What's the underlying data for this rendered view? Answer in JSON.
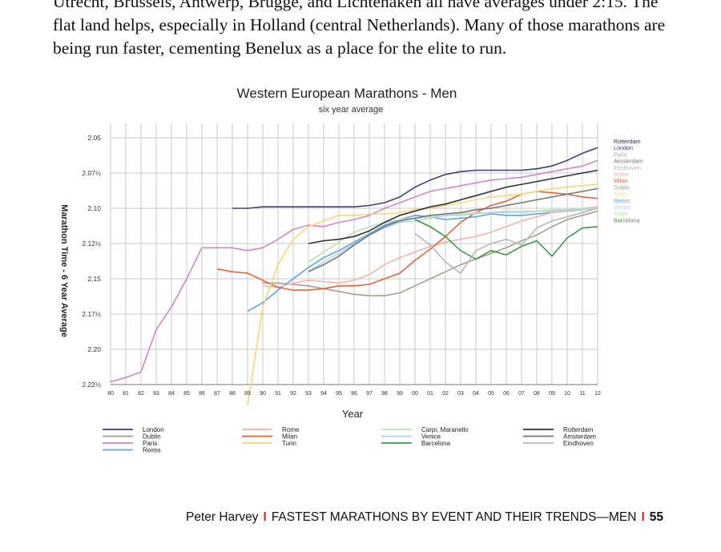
{
  "page": {
    "paragraph": "Utrecht, Brussels, Antwerp, Brugge, and Lichtenaken all have averages under 2:15. The flat land helps, especially in Holland (central Netherlands). Many of those marathons are being run faster, cementing Benelux as a place for the elite to run.",
    "footer": {
      "author": "Peter Harvey",
      "separator": "I",
      "title": "FASTEST MARATHONS BY EVENT AND THEIR TRENDS—MEN",
      "page_number": "55"
    }
  },
  "chart_data": {
    "type": "line",
    "title": "Western European Marathons - Men",
    "subtitle": "six year average",
    "xlabel": "Year",
    "ylabel": "Marathon Time - 6 Year Average",
    "y_inverted": true,
    "ylim_minutes": [
      126,
      141
    ],
    "grid": true,
    "x": [
      "80",
      "81",
      "82",
      "83",
      "84",
      "85",
      "86",
      "87",
      "88",
      "89",
      "90",
      "91",
      "92",
      "93",
      "94",
      "95",
      "96",
      "97",
      "98",
      "99",
      "00",
      "01",
      "02",
      "03",
      "04",
      "05",
      "06",
      "07",
      "08",
      "09",
      "10",
      "11",
      "12"
    ],
    "y_ticks": [
      {
        "label": "2.05",
        "minutes": 125
      },
      {
        "label": "2.07½",
        "minutes": 127.5
      },
      {
        "label": "2.10",
        "minutes": 130
      },
      {
        "label": "2.12½",
        "minutes": 132.5
      },
      {
        "label": "2.15",
        "minutes": 135
      },
      {
        "label": "2.17½",
        "minutes": 137.5
      },
      {
        "label": "2.20",
        "minutes": 140
      },
      {
        "label": "2.22½",
        "minutes": 142.5
      }
    ],
    "series": [
      {
        "name": "London",
        "color": "#3f3f7d",
        "values": [
          null,
          null,
          null,
          null,
          null,
          null,
          null,
          null,
          130.0,
          130.0,
          129.9,
          129.9,
          129.9,
          129.9,
          129.9,
          129.9,
          129.9,
          129.8,
          129.6,
          129.2,
          128.5,
          128.0,
          127.6,
          127.4,
          127.3,
          127.3,
          127.3,
          127.3,
          127.2,
          127.0,
          126.6,
          126.1,
          125.7
        ]
      },
      {
        "name": "Dublin",
        "color": "#a4a08c",
        "values": [
          null,
          null,
          null,
          null,
          null,
          null,
          null,
          null,
          null,
          null,
          135.3,
          135.3,
          135.4,
          135.5,
          135.7,
          135.9,
          136.1,
          136.2,
          136.2,
          136.0,
          135.5,
          135.0,
          134.5,
          134.0,
          133.6,
          133.2,
          132.8,
          132.3,
          131.9,
          131.3,
          130.8,
          130.5,
          130.2
        ]
      },
      {
        "name": "Paris",
        "color": "#cf86c3",
        "values": [
          142.3,
          142.0,
          141.6,
          138.6,
          137.0,
          135.0,
          132.8,
          132.8,
          132.8,
          133.0,
          132.8,
          132.2,
          131.5,
          131.2,
          131.3,
          131.0,
          130.8,
          130.5,
          130.0,
          129.6,
          129.2,
          128.8,
          128.6,
          128.4,
          128.2,
          128.0,
          127.9,
          127.8,
          127.6,
          127.4,
          127.2,
          127.0,
          126.6
        ]
      },
      {
        "name": "Reims",
        "color": "#5aa7dc",
        "values": [
          null,
          null,
          null,
          null,
          null,
          null,
          null,
          null,
          null,
          137.3,
          136.7,
          135.8,
          135.0,
          134.2,
          133.5,
          133.0,
          132.4,
          131.8,
          131.2,
          130.8,
          130.5,
          130.6,
          130.8,
          130.7,
          130.6,
          130.4,
          130.5,
          130.5,
          130.4,
          130.3,
          130.2,
          130.1,
          130.0
        ]
      },
      {
        "name": "Rome",
        "color": "#f3b2a6",
        "values": [
          null,
          null,
          null,
          null,
          null,
          null,
          null,
          null,
          null,
          null,
          135.5,
          135.6,
          135.3,
          135.1,
          135.2,
          135.3,
          135.1,
          134.7,
          134.0,
          133.5,
          133.1,
          132.7,
          132.4,
          132.2,
          132.0,
          131.7,
          131.3,
          130.9,
          130.6,
          130.3,
          130.2,
          130.0,
          129.9
        ]
      },
      {
        "name": "Milan",
        "color": "#e6633a",
        "values": [
          null,
          null,
          null,
          null,
          null,
          null,
          null,
          134.3,
          134.5,
          134.6,
          135.1,
          135.6,
          135.8,
          135.8,
          135.7,
          135.5,
          135.5,
          135.4,
          135.0,
          134.6,
          133.7,
          132.9,
          132.0,
          131.0,
          130.3,
          129.8,
          129.5,
          129.0,
          128.8,
          128.9,
          129.0,
          129.2,
          129.3
        ]
      },
      {
        "name": "Turin",
        "color": "#f7d673",
        "values": [
          null,
          null,
          null,
          null,
          null,
          null,
          null,
          null,
          null,
          144.0,
          137.0,
          134.0,
          132.2,
          131.3,
          130.9,
          130.5,
          130.5,
          130.4,
          130.4,
          130.3,
          130.1,
          130.0,
          129.8,
          129.6,
          129.4,
          129.2,
          129.1,
          129.0,
          128.8,
          128.6,
          128.5,
          128.4,
          128.3
        ]
      },
      {
        "name": "Carpi, Maranello",
        "color": "#bde3a6",
        "values": [
          null,
          null,
          null,
          null,
          null,
          null,
          null,
          null,
          null,
          null,
          null,
          null,
          null,
          133.8,
          133.1,
          132.4,
          131.7,
          131.3,
          131.0,
          130.8,
          130.7,
          130.6,
          130.5,
          130.4,
          130.3,
          130.3,
          130.2,
          130.2,
          130.2,
          130.1,
          130.1,
          130.0,
          130.0
        ]
      },
      {
        "name": "Venice",
        "color": "#b0d4e7",
        "values": [
          null,
          null,
          null,
          null,
          null,
          null,
          null,
          null,
          null,
          null,
          null,
          null,
          null,
          134.5,
          133.8,
          133.2,
          132.5,
          131.9,
          131.4,
          131.0,
          130.9,
          130.7,
          130.5,
          130.5,
          130.4,
          130.3,
          130.3,
          130.3,
          130.2,
          130.2,
          130.1,
          130.1,
          130.0
        ]
      },
      {
        "name": "Barcelona",
        "color": "#3b9a4a",
        "values": [
          null,
          null,
          null,
          null,
          null,
          null,
          null,
          null,
          null,
          null,
          null,
          null,
          null,
          null,
          null,
          null,
          null,
          null,
          null,
          null,
          130.8,
          131.3,
          132.0,
          133.0,
          133.6,
          133.0,
          133.3,
          132.7,
          132.3,
          133.4,
          132.1,
          131.4,
          131.3
        ]
      },
      {
        "name": "Rotterdam",
        "color": "#2f2f3a",
        "values": [
          null,
          null,
          null,
          null,
          null,
          null,
          null,
          null,
          null,
          null,
          null,
          null,
          null,
          132.5,
          132.3,
          132.2,
          132.0,
          131.6,
          131.0,
          130.5,
          130.2,
          129.9,
          129.7,
          129.4,
          129.1,
          128.8,
          128.5,
          128.3,
          128.1,
          127.9,
          127.7,
          127.5,
          127.3
        ]
      },
      {
        "name": "Amsterdam",
        "color": "#767676",
        "values": [
          null,
          null,
          null,
          null,
          null,
          null,
          null,
          null,
          null,
          null,
          null,
          null,
          null,
          134.5,
          134.0,
          133.4,
          132.6,
          131.9,
          131.3,
          130.9,
          130.7,
          130.5,
          130.4,
          130.3,
          130.1,
          130.0,
          129.8,
          129.6,
          129.4,
          129.2,
          129.0,
          128.8,
          128.6
        ]
      },
      {
        "name": "Eindhoven",
        "color": "#b7b7b7",
        "values": [
          null,
          null,
          null,
          null,
          null,
          null,
          null,
          null,
          null,
          null,
          null,
          null,
          null,
          null,
          null,
          null,
          null,
          null,
          null,
          null,
          131.8,
          132.6,
          133.8,
          134.6,
          133.0,
          132.5,
          132.2,
          132.6,
          131.4,
          130.9,
          130.6,
          130.3,
          130.0
        ]
      }
    ],
    "series_colors_right_labels": [
      "Rotterdam",
      "London",
      "Paris",
      "Amsterdam",
      "Eindhoven",
      "Rome",
      "Milan",
      "Dublin",
      "Turin",
      "Reims",
      "Venice",
      "Carpi",
      "Barcelona"
    ],
    "legend": {
      "placement": "bottom",
      "groups": [
        [
          "London",
          "Dublin",
          "Paris",
          "Reims"
        ],
        [
          "Rome",
          "Milan",
          "Turin"
        ],
        [
          "Carpi, Maranello",
          "Venice",
          "Barcelona"
        ],
        [
          "Rotterdam",
          "Amsterdam",
          "Eindhoven"
        ]
      ]
    }
  }
}
